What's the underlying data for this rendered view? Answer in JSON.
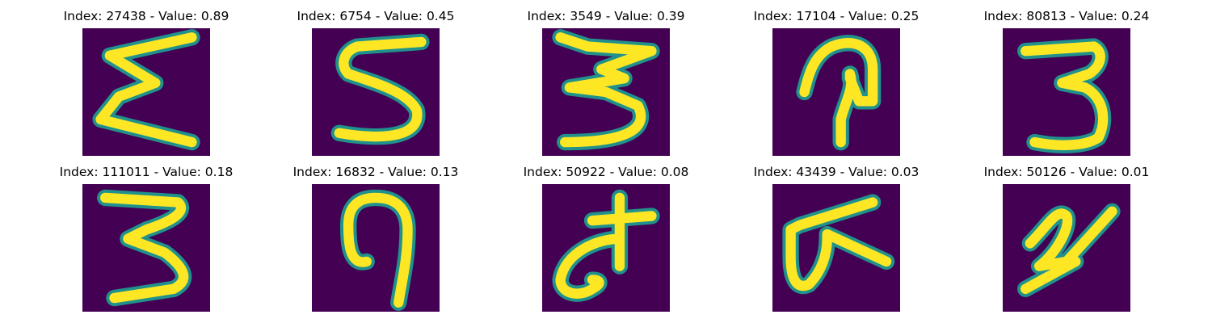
{
  "colormap": {
    "background": "#440154",
    "mid": "#21918c",
    "high": "#fde725"
  },
  "panels": [
    {
      "title": "Index: 27438 - Value: 0.89",
      "glyph": "sigma-like-3"
    },
    {
      "title": "Index: 6754 - Value: 0.45",
      "glyph": "5"
    },
    {
      "title": "Index: 3549 - Value: 0.39",
      "glyph": "3"
    },
    {
      "title": "Index: 17104 - Value: 0.25",
      "glyph": "P"
    },
    {
      "title": "Index: 80813 - Value: 0.24",
      "glyph": "3"
    },
    {
      "title": "Index: 111011 - Value: 0.18",
      "glyph": "3"
    },
    {
      "title": "Index: 16832 - Value: 0.13",
      "glyph": "9"
    },
    {
      "title": "Index: 50922 - Value: 0.08",
      "glyph": "d"
    },
    {
      "title": "Index: 43439 - Value: 0.03",
      "glyph": "G"
    },
    {
      "title": "Index: 50126 - Value: 0.01",
      "glyph": "2"
    }
  ]
}
